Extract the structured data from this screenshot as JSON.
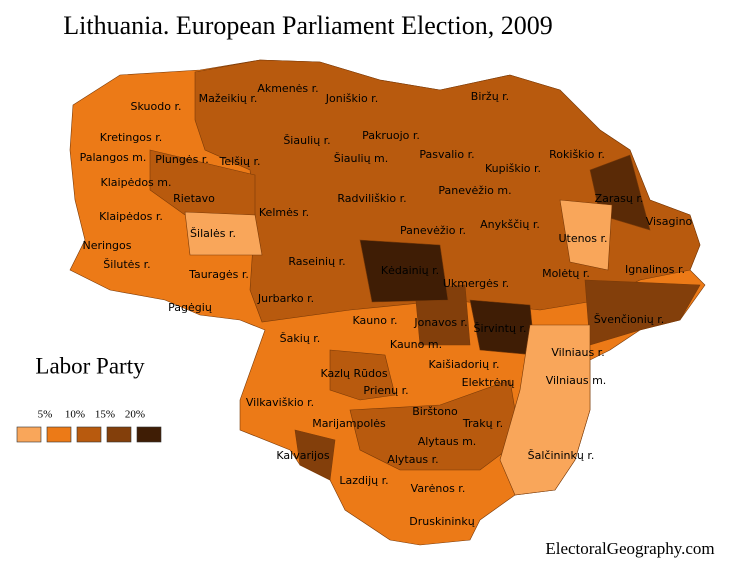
{
  "title": "Lithuania. European Parliament Election, 2009",
  "legend": {
    "title": "Labor Party",
    "labels": [
      "5%",
      "10%",
      "15%",
      "20%"
    ],
    "colors": [
      "#f9a65a",
      "#ec7a17",
      "#b85a0e",
      "#833f0b",
      "#3f1d05"
    ]
  },
  "regions": [
    "Skuodo r.",
    "Mažeikių r.",
    "Akmenės r.",
    "Joniškio r.",
    "Biržų r.",
    "Kretingos r.",
    "Šiaulių r.",
    "Pakruojo r.",
    "Palangos m.",
    "Plungės r.",
    "Telšių r.",
    "Šiaulių m.",
    "Pasvalio r.",
    "Kupiškio r.",
    "Rokiškio r.",
    "Klaipėdos m.",
    "Rietavo",
    "Radviliškio r.",
    "Panevėžio m.",
    "Zarasų r.",
    "Kelmės r.",
    "Klaipėdos r.",
    "Šilalės r.",
    "Panevėžio r.",
    "Anykščių r.",
    "Visagino",
    "Utenos r.",
    "Neringos",
    "Šilutės r.",
    "Raseinių r.",
    "Kėdainių r.",
    "Tauragės r.",
    "Molėtų r.",
    "Ignalinos r.",
    "Ukmergės r.",
    "Jurbarko r.",
    "Pagėgių",
    "Kauno r.",
    "Jonavos r.",
    "Širvintų r.",
    "Švenčionių r.",
    "Šakių r.",
    "Kauno m.",
    "Vilniaus r.",
    "Kaišiadorių r.",
    "Kazlų Rūdos",
    "Prienų r.",
    "Elektrėnų",
    "Vilniaus m.",
    "Vilkaviškio r.",
    "Birštono",
    "Marijampolės",
    "Trakų r.",
    "Alytaus m.",
    "Kalvarijos",
    "Alytaus r.",
    "Šalčininkų r.",
    "Lazdijų r.",
    "Varėnos r.",
    "Druskininkų"
  ],
  "footer": "ElectoralGeography.com"
}
